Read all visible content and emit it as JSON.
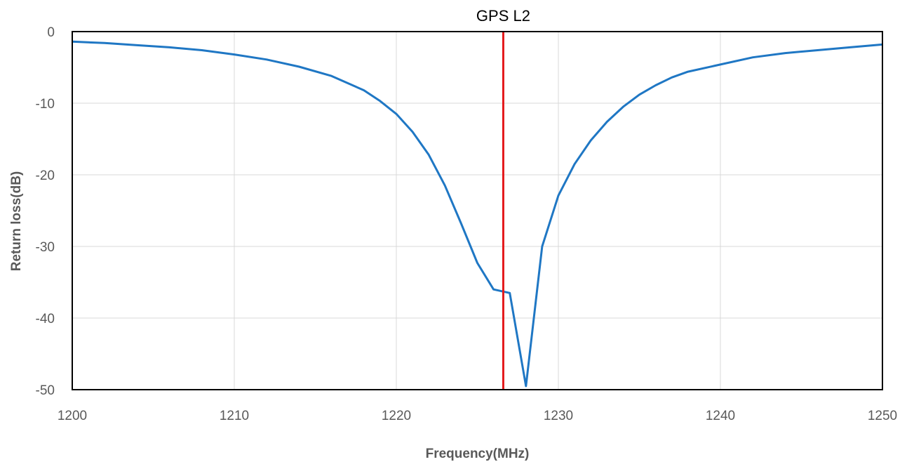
{
  "chart_data": {
    "type": "line",
    "title": "",
    "xlabel": "Frequency(MHz)",
    "ylabel": "Return loss(dB)",
    "xlim": [
      1200,
      1250
    ],
    "ylim": [
      -50,
      0
    ],
    "xticks": [
      1200,
      1210,
      1220,
      1230,
      1240,
      1250
    ],
    "yticks": [
      0,
      -10,
      -20,
      -30,
      -40,
      -50
    ],
    "xtick_labels": [
      "1200",
      "1210",
      "1220",
      "1230",
      "1240",
      "1250"
    ],
    "ytick_labels": [
      "0",
      "-10",
      "-20",
      "-30",
      "-40",
      "-50"
    ],
    "grid": true,
    "series": [
      {
        "color": "#1f77c4",
        "x": [
          1200,
          1202,
          1204,
          1206,
          1208,
          1210,
          1212,
          1214,
          1216,
          1218,
          1219,
          1220,
          1221,
          1222,
          1223,
          1224,
          1225,
          1226,
          1227,
          1228,
          1229,
          1230,
          1231,
          1232,
          1233,
          1234,
          1235,
          1236,
          1237,
          1238,
          1240,
          1242,
          1244,
          1246,
          1248,
          1250
        ],
        "y": [
          -1.4,
          -1.6,
          -1.9,
          -2.2,
          -2.6,
          -3.2,
          -3.9,
          -4.9,
          -6.2,
          -8.2,
          -9.7,
          -11.5,
          -14.0,
          -17.2,
          -21.5,
          -26.8,
          -32.3,
          -36.0,
          -36.5,
          -49.5,
          -30.0,
          -22.9,
          -18.5,
          -15.2,
          -12.6,
          -10.5,
          -8.8,
          -7.5,
          -6.4,
          -5.6,
          -4.6,
          -3.6,
          -3.0,
          -2.6,
          -2.2,
          -1.8
        ]
      }
    ],
    "markers": [
      {
        "x": 1226.6,
        "label": "GPS L2",
        "color": "#e41a1c"
      }
    ]
  }
}
